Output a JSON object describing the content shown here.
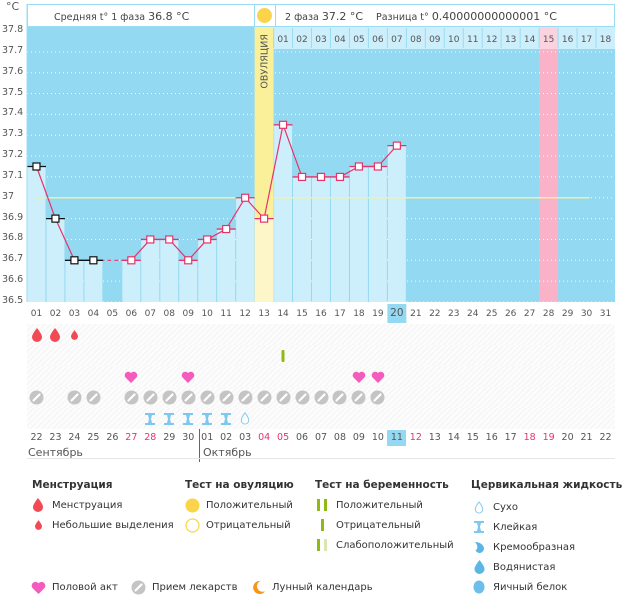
{
  "header": {
    "unit": "°C",
    "phase1_label": "Средняя t° 1 фаза",
    "phase1_value": "36.8 °C",
    "phase2_label": "2 фаза",
    "phase2_value": "37.2 °C",
    "diff_label": "Разница t°",
    "diff_value": "0.40000000000001 °C",
    "ovulation_label": "ОВУЛЯЦИЯ"
  },
  "colors": {
    "chart_bg": "#94d9f2",
    "bar_fill": "#cdeefb",
    "line": "#e8336a",
    "ovulation": "#faf09a",
    "fertile_pink": "#f9b2c8",
    "coverline": "#f4f0a0",
    "today": "#95d8f2"
  },
  "chart_data": {
    "type": "line",
    "title": "",
    "xlabel": "",
    "ylabel": "°C",
    "ylim": [
      36.5,
      37.8
    ],
    "yticks": [
      "37.8",
      "37.7",
      "37.6",
      "37.5",
      "37.4",
      "37.3",
      "37.2",
      "37.1",
      "37",
      "36.9",
      "36.8",
      "36.7",
      "36.6",
      "36.5"
    ],
    "ytick_values": [
      37.8,
      37.7,
      37.6,
      37.5,
      37.4,
      37.3,
      37.2,
      37.1,
      37.0,
      36.9,
      36.8,
      36.7,
      36.6,
      36.5
    ],
    "cycle_days": [
      "01",
      "02",
      "03",
      "04",
      "05",
      "06",
      "07",
      "08",
      "09",
      "10",
      "11",
      "12",
      "13",
      "14",
      "15",
      "16",
      "17",
      "18",
      "19",
      "20",
      "21",
      "22",
      "23",
      "24",
      "25",
      "26",
      "27",
      "28",
      "29",
      "30",
      "31"
    ],
    "series": [
      {
        "name": "Базальная температура",
        "values": [
          37.15,
          36.9,
          36.7,
          36.7,
          null,
          36.7,
          36.8,
          36.8,
          36.7,
          36.8,
          36.85,
          37.0,
          36.9,
          37.35,
          37.1,
          37.1,
          37.1,
          37.15,
          37.15,
          37.25
        ]
      }
    ],
    "menstruation_marker_days": [
      1,
      2,
      3,
      4
    ],
    "coverline": 37.0,
    "coverline_end_day": 30,
    "ovulation_day": 13,
    "highlight_day": 28,
    "today_day": 20,
    "phase2_days": [
      "01",
      "02",
      "03",
      "04",
      "05",
      "06",
      "07",
      "08",
      "09",
      "10",
      "11",
      "12",
      "13",
      "14",
      "15",
      "16",
      "17",
      "18"
    ],
    "phase2_highlight": "15",
    "grid": true,
    "legend": "none"
  },
  "symbols": {
    "menstruation": [
      1,
      2
    ],
    "spotting": [
      3
    ],
    "pregnancy_negative": [
      14
    ],
    "intercourse": [
      6,
      9,
      18,
      19
    ],
    "medication": [
      1,
      3,
      4,
      6,
      7,
      8,
      9,
      10,
      11,
      12,
      13,
      14,
      15,
      16,
      17,
      18,
      19
    ],
    "sticky": [
      7,
      8,
      9,
      10,
      11
    ],
    "dry": [
      12
    ]
  },
  "calendar": {
    "dates": [
      "22",
      "23",
      "24",
      "25",
      "26",
      "27",
      "28",
      "29",
      "30",
      "01",
      "02",
      "03",
      "04",
      "05",
      "06",
      "07",
      "08",
      "09",
      "10",
      "11",
      "12",
      "13",
      "14",
      "15",
      "16",
      "17",
      "18",
      "19",
      "20",
      "21",
      "22"
    ],
    "red_days": [
      6,
      7,
      13,
      14,
      21,
      27,
      28
    ],
    "today_index": 20,
    "months": [
      {
        "label": "Сентябрь"
      },
      {
        "label": "Октябрь"
      }
    ]
  },
  "legend": {
    "menstruation": {
      "title": "Менструация",
      "items": [
        "Менструация",
        "Небольшие выделения"
      ]
    },
    "ovulation_test": {
      "title": "Тест на овуляцию",
      "items": [
        "Положительный",
        "Отрицательный"
      ]
    },
    "pregnancy_test": {
      "title": "Тест на беременность",
      "items": [
        "Положительный",
        "Отрицательный",
        "Слабоположительный"
      ]
    },
    "cervical": {
      "title": "Цервикальная жидкость",
      "items": [
        "Сухо",
        "Клейкая",
        "Кремообразная",
        "Водянистая",
        "Яичный белок"
      ]
    },
    "other": [
      "Половой акт",
      "Прием лекарств",
      "Лунный календарь"
    ]
  }
}
